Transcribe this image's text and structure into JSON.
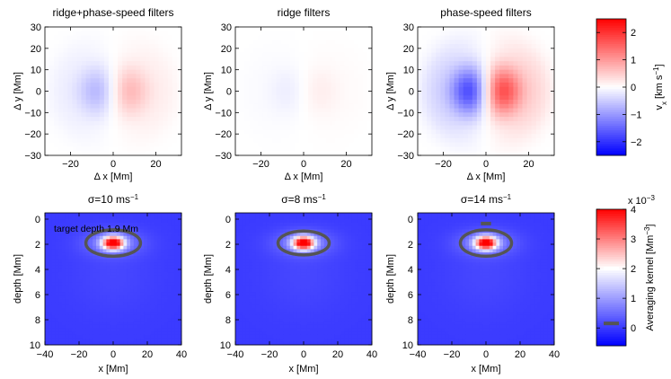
{
  "chart_data": {
    "type": "heatmap",
    "top_row": {
      "xlabel": "Δ x [Mm]",
      "ylabel": "Δ y [Mm]",
      "xlim": [
        -32,
        32
      ],
      "ylim": [
        -30,
        30
      ],
      "xticks": [
        -20,
        0,
        20
      ],
      "yticks": [
        -30,
        -20,
        -10,
        0,
        10,
        20,
        30
      ],
      "panels": [
        {
          "title": "ridge+phase-speed filters",
          "amplitude": 0.9
        },
        {
          "title": "ridge filters",
          "amplitude": 0.22
        },
        {
          "title": "phase-speed filters",
          "amplitude": 2.3
        }
      ],
      "colorbar": {
        "label": "v_x [km s^-1]",
        "label_main": "v",
        "label_sub": "x",
        "label_units": " [km s",
        "label_exp": "−1",
        "label_close": "]",
        "range": [
          -2.5,
          2.5
        ],
        "ticks": [
          -2,
          -1,
          0,
          1,
          2
        ],
        "tick_labels": [
          "−2",
          "−1",
          "0",
          "1",
          "2"
        ],
        "colormap": [
          "#0000ff",
          "#ffffff",
          "#ff0000"
        ]
      }
    },
    "bottom_row": {
      "xlabel": "x [Mm]",
      "ylabel": "depth [Mm]",
      "xlim": [
        -40,
        40
      ],
      "ylim": [
        10,
        -0.5
      ],
      "xticks": [
        -40,
        -20,
        0,
        20,
        40
      ],
      "yticks": [
        0,
        2,
        4,
        6,
        8,
        10
      ],
      "annotation": "target depth 1.9 Mm",
      "target": {
        "x": 0,
        "depth": 1.9
      },
      "panels": [
        {
          "title_prefix": "σ=10 ms",
          "title_exp": "−1",
          "peak_depth": 1.9,
          "ellipse": {
            "x": 0,
            "depth": 1.9,
            "rx": 16,
            "rdepth": 1.05
          },
          "marker": null
        },
        {
          "title_prefix": "σ=8 ms",
          "title_exp": "−1",
          "peak_depth": 1.9,
          "ellipse": {
            "x": 0,
            "depth": 1.9,
            "rx": 15,
            "rdepth": 0.95
          },
          "marker": null
        },
        {
          "title_prefix": "σ=14 ms",
          "title_exp": "−1",
          "peak_depth": 1.9,
          "ellipse": {
            "x": 0,
            "depth": 1.9,
            "rx": 15,
            "rdepth": 1.05
          },
          "marker": {
            "x": 0,
            "depth": 0.35,
            "width": 6
          }
        }
      ],
      "colorbar": {
        "label": "Averaging kernel [Mm^-3]",
        "label_units": "Averaging kernel [Mm",
        "label_exp": "−3",
        "label_close": "]",
        "multiplier_base": "x 10",
        "multiplier_exp": "−3",
        "range": [
          -0.6,
          4.0
        ],
        "ticks": [
          0,
          1,
          2,
          3,
          4
        ],
        "tick_labels": [
          "0",
          "1",
          "2",
          "3",
          "4"
        ],
        "white_line_value": 2.0,
        "gray_line_value": 0.0,
        "colormap": [
          "#0000ff",
          "#ffffff",
          "#ff0000"
        ]
      }
    }
  }
}
